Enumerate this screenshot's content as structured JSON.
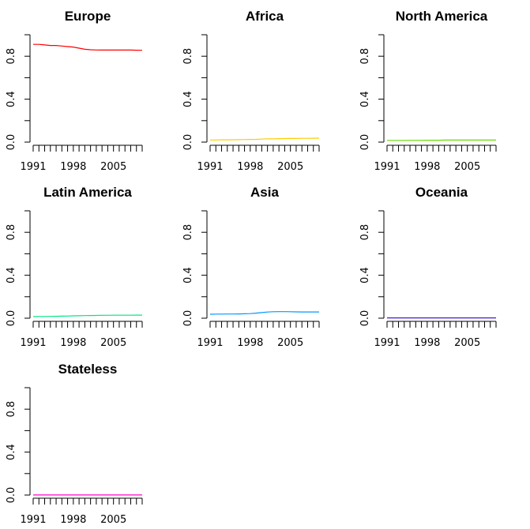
{
  "chart_data": [
    {
      "type": "line",
      "title": "Europe",
      "x": [
        1991,
        1992,
        1993,
        1994,
        1995,
        1996,
        1997,
        1998,
        1999,
        2000,
        2001,
        2002,
        2003,
        2004,
        2005,
        2006,
        2007,
        2008,
        2009,
        2010
      ],
      "series": [
        {
          "color": "#FF0000",
          "values": [
            0.91,
            0.91,
            0.905,
            0.9,
            0.9,
            0.895,
            0.89,
            0.885,
            0.875,
            0.865,
            0.86,
            0.858,
            0.857,
            0.857,
            0.857,
            0.857,
            0.857,
            0.857,
            0.856,
            0.855
          ]
        }
      ],
      "ylim": [
        0,
        1
      ],
      "yticks": [
        0.0,
        0.2,
        0.4,
        0.6,
        0.8,
        1.0
      ],
      "ytick_labels": [
        "0.0",
        "0.4",
        "0.8"
      ],
      "xtick_labels": [
        "1991",
        "1998",
        "2005"
      ]
    },
    {
      "type": "line",
      "title": "Africa",
      "x": [
        1991,
        1992,
        1993,
        1994,
        1995,
        1996,
        1997,
        1998,
        1999,
        2000,
        2001,
        2002,
        2003,
        2004,
        2005,
        2006,
        2007,
        2008,
        2009,
        2010
      ],
      "series": [
        {
          "color": "#FFCC00",
          "values": [
            0.02,
            0.02,
            0.021,
            0.021,
            0.022,
            0.023,
            0.024,
            0.025,
            0.026,
            0.028,
            0.03,
            0.031,
            0.032,
            0.033,
            0.034,
            0.034,
            0.035,
            0.035,
            0.036,
            0.037
          ]
        }
      ],
      "ylim": [
        0,
        1
      ],
      "yticks": [
        0.0,
        0.2,
        0.4,
        0.6,
        0.8,
        1.0
      ],
      "ytick_labels": [
        "0.0",
        "0.4",
        "0.8"
      ],
      "xtick_labels": [
        "1991",
        "1998",
        "2005"
      ]
    },
    {
      "type": "line",
      "title": "North America",
      "x": [
        1991,
        1992,
        1993,
        1994,
        1995,
        1996,
        1997,
        1998,
        1999,
        2000,
        2001,
        2002,
        2003,
        2004,
        2005,
        2006,
        2007,
        2008,
        2009,
        2010
      ],
      "series": [
        {
          "color": "#66DD00",
          "values": [
            0.016,
            0.016,
            0.016,
            0.016,
            0.017,
            0.017,
            0.017,
            0.018,
            0.018,
            0.018,
            0.019,
            0.019,
            0.019,
            0.019,
            0.019,
            0.019,
            0.019,
            0.019,
            0.019,
            0.019
          ]
        }
      ],
      "ylim": [
        0,
        1
      ],
      "yticks": [
        0.0,
        0.2,
        0.4,
        0.6,
        0.8,
        1.0
      ],
      "ytick_labels": [
        "0.0",
        "0.4",
        "0.8"
      ],
      "xtick_labels": [
        "1991",
        "1998",
        "2005"
      ]
    },
    {
      "type": "line",
      "title": "Latin America",
      "x": [
        1991,
        1992,
        1993,
        1994,
        1995,
        1996,
        1997,
        1998,
        1999,
        2000,
        2001,
        2002,
        2003,
        2004,
        2005,
        2006,
        2007,
        2008,
        2009,
        2010
      ],
      "series": [
        {
          "color": "#00E680",
          "values": [
            0.015,
            0.016,
            0.016,
            0.017,
            0.018,
            0.019,
            0.02,
            0.022,
            0.023,
            0.024,
            0.025,
            0.026,
            0.027,
            0.027,
            0.028,
            0.028,
            0.028,
            0.028,
            0.029,
            0.029
          ]
        }
      ],
      "ylim": [
        0,
        1
      ],
      "yticks": [
        0.0,
        0.2,
        0.4,
        0.6,
        0.8,
        1.0
      ],
      "ytick_labels": [
        "0.0",
        "0.4",
        "0.8"
      ],
      "xtick_labels": [
        "1991",
        "1998",
        "2005"
      ]
    },
    {
      "type": "line",
      "title": "Asia",
      "x": [
        1991,
        1992,
        1993,
        1994,
        1995,
        1996,
        1997,
        1998,
        1999,
        2000,
        2001,
        2002,
        2003,
        2004,
        2005,
        2006,
        2007,
        2008,
        2009,
        2010
      ],
      "series": [
        {
          "color": "#0099FF",
          "values": [
            0.037,
            0.038,
            0.038,
            0.039,
            0.039,
            0.04,
            0.041,
            0.043,
            0.047,
            0.052,
            0.057,
            0.06,
            0.061,
            0.061,
            0.06,
            0.059,
            0.058,
            0.058,
            0.058,
            0.058
          ]
        }
      ],
      "ylim": [
        0,
        1
      ],
      "yticks": [
        0.0,
        0.2,
        0.4,
        0.6,
        0.8,
        1.0
      ],
      "ytick_labels": [
        "0.0",
        "0.4",
        "0.8"
      ],
      "xtick_labels": [
        "1991",
        "1998",
        "2005"
      ]
    },
    {
      "type": "line",
      "title": "Oceania",
      "x": [
        1991,
        1992,
        1993,
        1994,
        1995,
        1996,
        1997,
        1998,
        1999,
        2000,
        2001,
        2002,
        2003,
        2004,
        2005,
        2006,
        2007,
        2008,
        2009,
        2010
      ],
      "series": [
        {
          "color": "#3300CC",
          "values": [
            0.002,
            0.002,
            0.002,
            0.002,
            0.002,
            0.002,
            0.002,
            0.002,
            0.002,
            0.002,
            0.002,
            0.002,
            0.002,
            0.002,
            0.002,
            0.002,
            0.002,
            0.002,
            0.002,
            0.002
          ]
        }
      ],
      "ylim": [
        0,
        1
      ],
      "yticks": [
        0.0,
        0.2,
        0.4,
        0.6,
        0.8,
        1.0
      ],
      "ytick_labels": [
        "0.0",
        "0.4",
        "0.8"
      ],
      "xtick_labels": [
        "1991",
        "1998",
        "2005"
      ]
    },
    {
      "type": "line",
      "title": "Stateless",
      "x": [
        1991,
        1992,
        1993,
        1994,
        1995,
        1996,
        1997,
        1998,
        1999,
        2000,
        2001,
        2002,
        2003,
        2004,
        2005,
        2006,
        2007,
        2008,
        2009,
        2010
      ],
      "series": [
        {
          "color": "#FF00CC",
          "values": [
            0.001,
            0.001,
            0.001,
            0.001,
            0.001,
            0.001,
            0.001,
            0.001,
            0.001,
            0.001,
            0.001,
            0.001,
            0.001,
            0.001,
            0.001,
            0.001,
            0.001,
            0.001,
            0.001,
            0.001
          ]
        }
      ],
      "ylim": [
        0,
        1
      ],
      "yticks": [
        0.0,
        0.2,
        0.4,
        0.6,
        0.8,
        1.0
      ],
      "ytick_labels": [
        "0.0",
        "0.4",
        "0.8"
      ],
      "xtick_labels": [
        "1991",
        "1998",
        "2005"
      ]
    }
  ]
}
